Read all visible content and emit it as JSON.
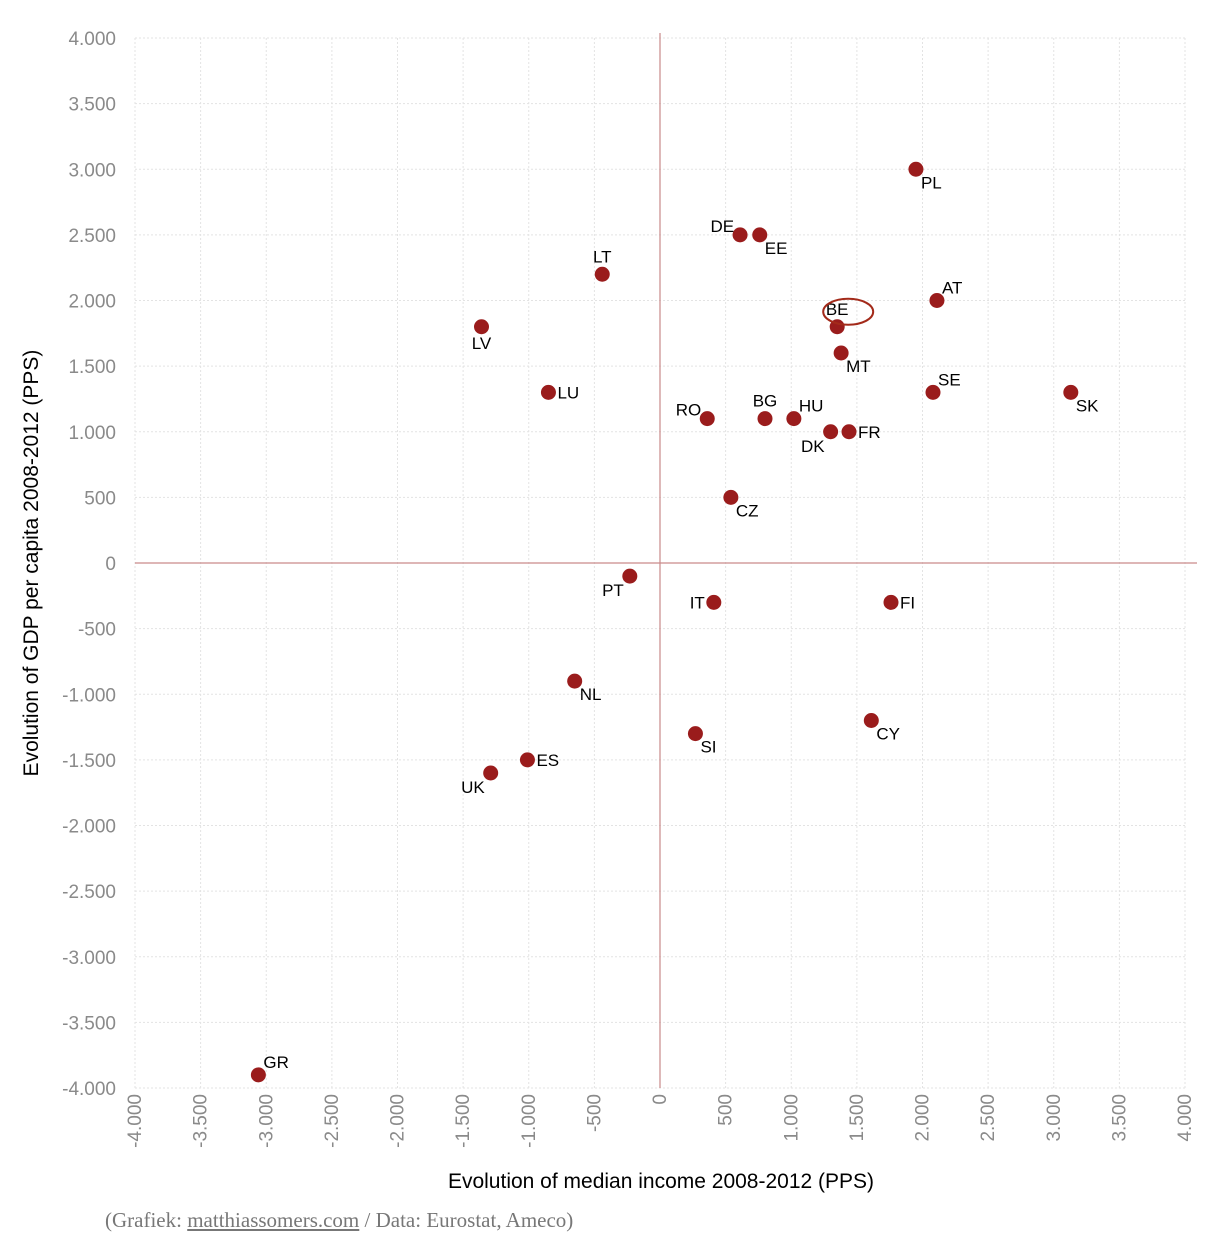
{
  "chart_data": {
    "type": "scatter",
    "xlabel": "Evolution of median income 2008-2012 (PPS)",
    "ylabel": "Evolution of GDP per capita 2008-2012 (PPS)",
    "xlim": [
      -4000,
      4000
    ],
    "ylim": [
      -4000,
      4000
    ],
    "xticks": [
      -4000,
      -3500,
      -3000,
      -2500,
      -2000,
      -1500,
      -1000,
      -500,
      0,
      500,
      1000,
      1500,
      2000,
      2500,
      3000,
      3500,
      4000
    ],
    "yticks": [
      4000,
      3500,
      3000,
      2500,
      2000,
      1500,
      1000,
      500,
      0,
      -500,
      -1000,
      -1500,
      -2000,
      -2500,
      -3000,
      -3500,
      -4000
    ],
    "xtick_labels": [
      "-4.000",
      "-3.500",
      "-3.000",
      "-2.500",
      "-2.000",
      "-1.500",
      "-1.000",
      "-500",
      "0",
      "500",
      "1.000",
      "1.500",
      "2.000",
      "2.500",
      "3.000",
      "3.500",
      "4.000"
    ],
    "ytick_labels": [
      "4.000",
      "3.500",
      "3.000",
      "2.500",
      "2.000",
      "1.500",
      "1.000",
      "500",
      "0",
      "-500",
      "-1.000",
      "-1.500",
      "-2.000",
      "-2.500",
      "-3.000",
      "-3.500",
      "-4.000"
    ],
    "grid": true,
    "highlight": "BE",
    "points": [
      {
        "label": "PL",
        "x": 1950,
        "y": 3000,
        "pos": "se"
      },
      {
        "label": "DE",
        "x": 610,
        "y": 2500,
        "pos": "nw"
      },
      {
        "label": "EE",
        "x": 760,
        "y": 2500,
        "pos": "se"
      },
      {
        "label": "LT",
        "x": -440,
        "y": 2200,
        "pos": "n"
      },
      {
        "label": "AT",
        "x": 2110,
        "y": 2000,
        "pos": "ne"
      },
      {
        "label": "BE",
        "x": 1350,
        "y": 1800,
        "pos": "n"
      },
      {
        "label": "LV",
        "x": -1360,
        "y": 1800,
        "pos": "s"
      },
      {
        "label": "MT",
        "x": 1380,
        "y": 1600,
        "pos": "se"
      },
      {
        "label": "LU",
        "x": -850,
        "y": 1300,
        "pos": "e"
      },
      {
        "label": "SE",
        "x": 2080,
        "y": 1300,
        "pos": "ne"
      },
      {
        "label": "SK",
        "x": 3130,
        "y": 1300,
        "pos": "se"
      },
      {
        "label": "RO",
        "x": 360,
        "y": 1100,
        "pos": "nw"
      },
      {
        "label": "BG",
        "x": 800,
        "y": 1100,
        "pos": "n"
      },
      {
        "label": "HU",
        "x": 1020,
        "y": 1100,
        "pos": "ne"
      },
      {
        "label": "DK",
        "x": 1300,
        "y": 1000,
        "pos": "sw"
      },
      {
        "label": "FR",
        "x": 1440,
        "y": 1000,
        "pos": "e"
      },
      {
        "label": "CZ",
        "x": 540,
        "y": 500,
        "pos": "se"
      },
      {
        "label": "PT",
        "x": -230,
        "y": -100,
        "pos": "sw"
      },
      {
        "label": "IT",
        "x": 410,
        "y": -300,
        "pos": "w"
      },
      {
        "label": "FI",
        "x": 1760,
        "y": -300,
        "pos": "e"
      },
      {
        "label": "NL",
        "x": -650,
        "y": -900,
        "pos": "se"
      },
      {
        "label": "CY",
        "x": 1610,
        "y": -1200,
        "pos": "se"
      },
      {
        "label": "SI",
        "x": 270,
        "y": -1300,
        "pos": "se"
      },
      {
        "label": "ES",
        "x": -1010,
        "y": -1500,
        "pos": "e"
      },
      {
        "label": "UK",
        "x": -1290,
        "y": -1600,
        "pos": "sw"
      },
      {
        "label": "GR",
        "x": -3060,
        "y": -3900,
        "pos": "ne"
      }
    ]
  },
  "caption": {
    "prefix": "(Grafiek: ",
    "link": "matthiassomers.com",
    "suffix": " / Data: Eurostat, Ameco)"
  },
  "colors": {
    "point": "#9a1c1c",
    "zero_line": "#c98a8a",
    "tick_text": "#8a8a8a"
  }
}
